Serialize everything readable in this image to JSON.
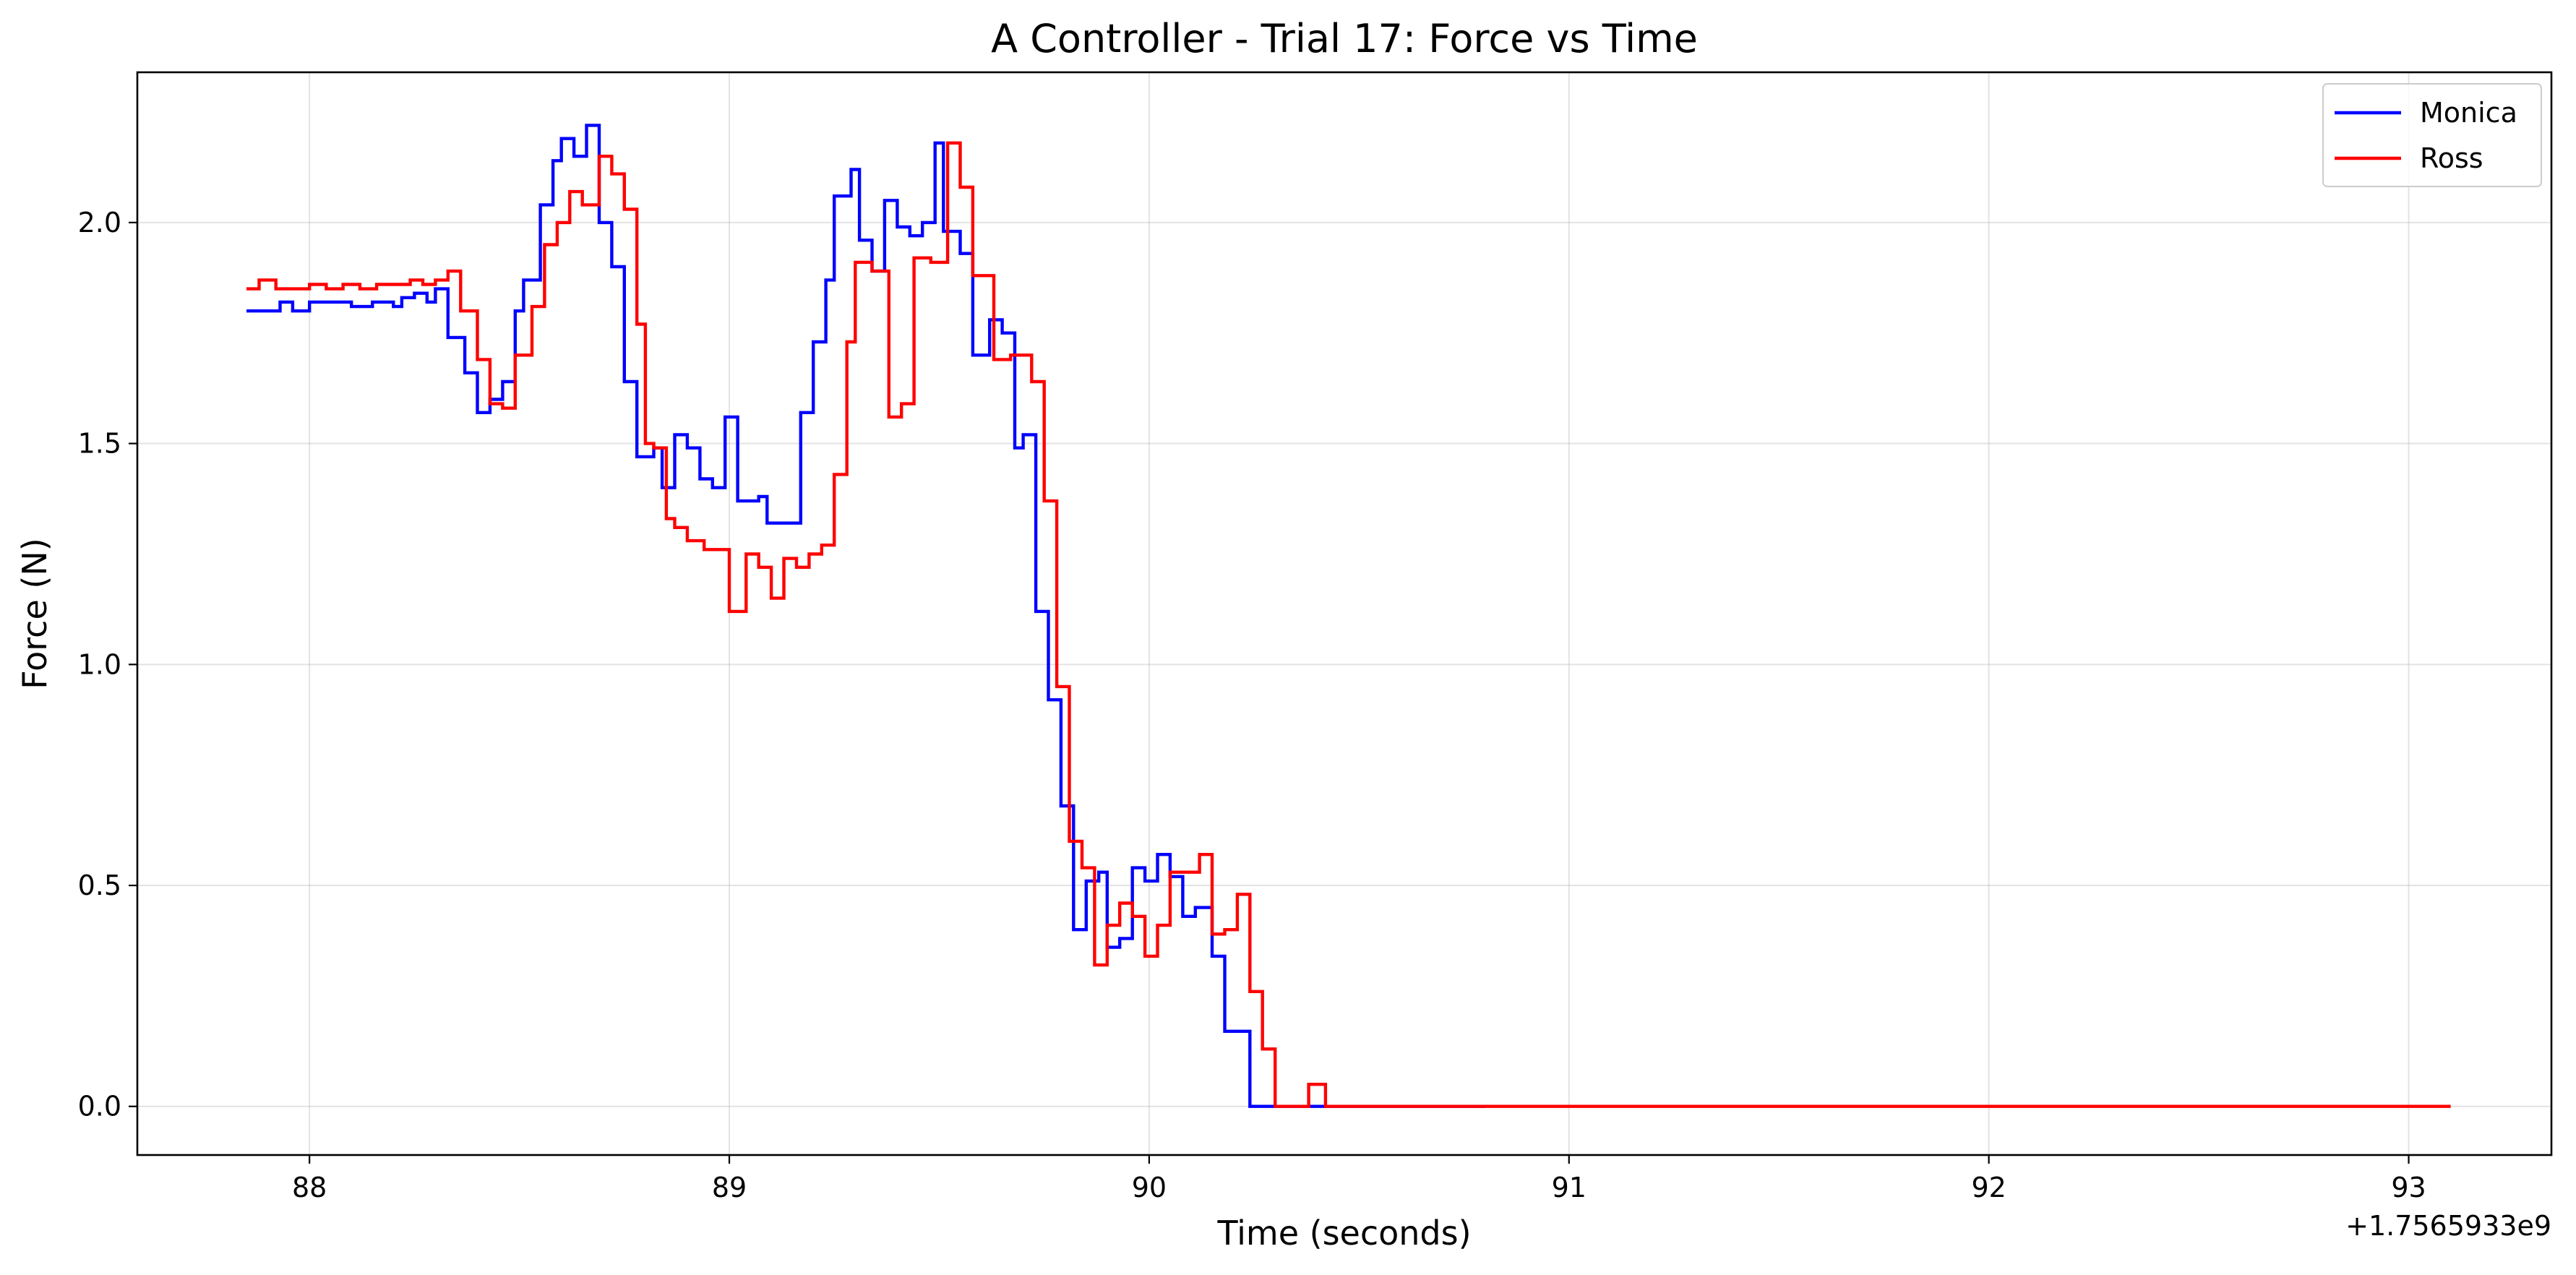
{
  "chart_data": {
    "type": "line",
    "drawstyle": "steps",
    "title": "A Controller - Trial 17: Force vs Time",
    "xlabel": "Time (seconds)",
    "ylabel": "Force (N)",
    "x_offset_label": "+1.7565933e9",
    "xlim": [
      87.59,
      93.34
    ],
    "ylim": [
      -0.11,
      2.34
    ],
    "xticks": [
      88,
      89,
      90,
      91,
      92,
      93
    ],
    "xtick_labels": [
      "88",
      "89",
      "90",
      "91",
      "92",
      "93"
    ],
    "yticks": [
      0.0,
      0.5,
      1.0,
      1.5,
      2.0
    ],
    "ytick_labels": [
      "0.0",
      "0.5",
      "1.0",
      "1.5",
      "2.0"
    ],
    "grid": true,
    "legend_position": "top-right",
    "series": [
      {
        "name": "Monica",
        "color": "#0000ff",
        "points": [
          [
            87.85,
            1.8
          ],
          [
            87.93,
            1.82
          ],
          [
            87.96,
            1.8
          ],
          [
            88.0,
            1.82
          ],
          [
            88.05,
            1.82
          ],
          [
            88.1,
            1.81
          ],
          [
            88.15,
            1.82
          ],
          [
            88.2,
            1.81
          ],
          [
            88.22,
            1.83
          ],
          [
            88.25,
            1.84
          ],
          [
            88.28,
            1.82
          ],
          [
            88.3,
            1.85
          ],
          [
            88.33,
            1.74
          ],
          [
            88.37,
            1.66
          ],
          [
            88.4,
            1.57
          ],
          [
            88.43,
            1.6
          ],
          [
            88.46,
            1.64
          ],
          [
            88.49,
            1.8
          ],
          [
            88.51,
            1.87
          ],
          [
            88.55,
            2.04
          ],
          [
            88.58,
            2.14
          ],
          [
            88.6,
            2.19
          ],
          [
            88.63,
            2.15
          ],
          [
            88.66,
            2.22
          ],
          [
            88.69,
            2.0
          ],
          [
            88.72,
            1.9
          ],
          [
            88.75,
            1.64
          ],
          [
            88.78,
            1.47
          ],
          [
            88.82,
            1.49
          ],
          [
            88.84,
            1.4
          ],
          [
            88.87,
            1.52
          ],
          [
            88.9,
            1.49
          ],
          [
            88.93,
            1.42
          ],
          [
            88.96,
            1.4
          ],
          [
            88.99,
            1.56
          ],
          [
            89.02,
            1.37
          ],
          [
            89.07,
            1.38
          ],
          [
            89.09,
            1.32
          ],
          [
            89.13,
            1.32
          ],
          [
            89.15,
            1.32
          ],
          [
            89.17,
            1.57
          ],
          [
            89.2,
            1.73
          ],
          [
            89.23,
            1.87
          ],
          [
            89.25,
            2.06
          ],
          [
            89.29,
            2.12
          ],
          [
            89.31,
            1.96
          ],
          [
            89.34,
            1.89
          ],
          [
            89.37,
            2.05
          ],
          [
            89.4,
            1.99
          ],
          [
            89.43,
            1.97
          ],
          [
            89.46,
            2.0
          ],
          [
            89.49,
            2.18
          ],
          [
            89.51,
            1.98
          ],
          [
            89.55,
            1.93
          ],
          [
            89.58,
            1.7
          ],
          [
            89.62,
            1.78
          ],
          [
            89.65,
            1.75
          ],
          [
            89.68,
            1.49
          ],
          [
            89.7,
            1.52
          ],
          [
            89.73,
            1.12
          ],
          [
            89.76,
            0.92
          ],
          [
            89.79,
            0.68
          ],
          [
            89.82,
            0.4
          ],
          [
            89.85,
            0.51
          ],
          [
            89.88,
            0.53
          ],
          [
            89.9,
            0.36
          ],
          [
            89.93,
            0.38
          ],
          [
            89.96,
            0.54
          ],
          [
            89.99,
            0.51
          ],
          [
            90.02,
            0.57
          ],
          [
            90.05,
            0.52
          ],
          [
            90.08,
            0.43
          ],
          [
            90.11,
            0.45
          ],
          [
            90.15,
            0.34
          ],
          [
            90.18,
            0.17
          ],
          [
            90.24,
            0.0
          ],
          [
            90.32,
            0.0
          ],
          [
            90.44,
            0.0
          ],
          [
            90.8,
            0.0
          ]
        ]
      },
      {
        "name": "Ross",
        "color": "#ff0000",
        "points": [
          [
            87.85,
            1.85
          ],
          [
            87.88,
            1.87
          ],
          [
            87.92,
            1.85
          ],
          [
            87.96,
            1.85
          ],
          [
            88.0,
            1.86
          ],
          [
            88.04,
            1.85
          ],
          [
            88.08,
            1.86
          ],
          [
            88.12,
            1.85
          ],
          [
            88.16,
            1.86
          ],
          [
            88.2,
            1.86
          ],
          [
            88.24,
            1.87
          ],
          [
            88.27,
            1.86
          ],
          [
            88.3,
            1.87
          ],
          [
            88.33,
            1.89
          ],
          [
            88.36,
            1.8
          ],
          [
            88.4,
            1.69
          ],
          [
            88.43,
            1.59
          ],
          [
            88.46,
            1.58
          ],
          [
            88.49,
            1.7
          ],
          [
            88.53,
            1.81
          ],
          [
            88.56,
            1.95
          ],
          [
            88.59,
            2.0
          ],
          [
            88.62,
            2.07
          ],
          [
            88.65,
            2.04
          ],
          [
            88.69,
            2.15
          ],
          [
            88.72,
            2.11
          ],
          [
            88.75,
            2.03
          ],
          [
            88.78,
            1.77
          ],
          [
            88.8,
            1.5
          ],
          [
            88.82,
            1.49
          ],
          [
            88.85,
            1.33
          ],
          [
            88.87,
            1.31
          ],
          [
            88.9,
            1.28
          ],
          [
            88.94,
            1.26
          ],
          [
            89.0,
            1.12
          ],
          [
            89.04,
            1.25
          ],
          [
            89.07,
            1.22
          ],
          [
            89.1,
            1.15
          ],
          [
            89.13,
            1.24
          ],
          [
            89.16,
            1.22
          ],
          [
            89.19,
            1.25
          ],
          [
            89.22,
            1.27
          ],
          [
            89.25,
            1.43
          ],
          [
            89.28,
            1.73
          ],
          [
            89.3,
            1.91
          ],
          [
            89.34,
            1.89
          ],
          [
            89.38,
            1.56
          ],
          [
            89.41,
            1.59
          ],
          [
            89.44,
            1.92
          ],
          [
            89.48,
            1.91
          ],
          [
            89.52,
            2.18
          ],
          [
            89.55,
            2.08
          ],
          [
            89.58,
            1.88
          ],
          [
            89.63,
            1.69
          ],
          [
            89.67,
            1.7
          ],
          [
            89.72,
            1.64
          ],
          [
            89.75,
            1.37
          ],
          [
            89.78,
            0.95
          ],
          [
            89.81,
            0.6
          ],
          [
            89.84,
            0.54
          ],
          [
            89.87,
            0.32
          ],
          [
            89.9,
            0.41
          ],
          [
            89.93,
            0.46
          ],
          [
            89.96,
            0.43
          ],
          [
            89.99,
            0.34
          ],
          [
            90.02,
            0.41
          ],
          [
            90.05,
            0.53
          ],
          [
            90.09,
            0.53
          ],
          [
            90.12,
            0.57
          ],
          [
            90.15,
            0.39
          ],
          [
            90.18,
            0.4
          ],
          [
            90.21,
            0.48
          ],
          [
            90.24,
            0.26
          ],
          [
            90.27,
            0.13
          ],
          [
            90.3,
            0.0
          ],
          [
            90.38,
            0.05
          ],
          [
            90.42,
            0.0
          ],
          [
            90.5,
            0.0
          ],
          [
            93.1,
            0.0
          ]
        ]
      }
    ]
  }
}
